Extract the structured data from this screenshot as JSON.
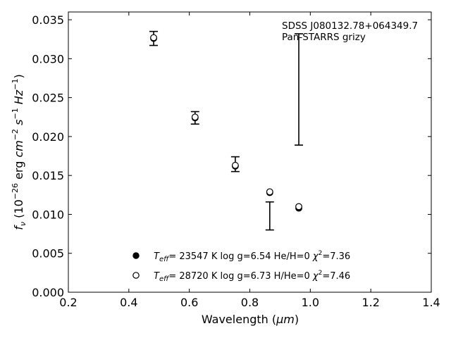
{
  "chart_data": {
    "type": "scatter",
    "xlabel_main": "Wavelength (",
    "xlabel_unit": "μm",
    "xlabel_close": ")",
    "ylabel": "f_ν (10^−26 erg cm^−2 s^−1 Hz^−1)",
    "xlim": [
      0.2,
      1.4
    ],
    "ylim": [
      0.0,
      0.036
    ],
    "xticks": [
      0.2,
      0.4,
      0.6,
      0.8,
      1.0,
      1.2,
      1.4
    ],
    "xtick_labels": [
      "0.2",
      "0.4",
      "0.6",
      "0.8",
      "1.0",
      "1.2",
      "1.4"
    ],
    "yticks": [
      0.0,
      0.005,
      0.01,
      0.015,
      0.02,
      0.025,
      0.03,
      0.035
    ],
    "ytick_labels": [
      "0.000",
      "0.005",
      "0.010",
      "0.015",
      "0.020",
      "0.025",
      "0.030",
      "0.035"
    ],
    "annotation_lines": [
      "SDSS J080132.78+064349.7",
      "Pan-STARRS grizy"
    ],
    "observed": [
      {
        "x": 0.482,
        "y": 0.0326,
        "yerr_low": 0.0317,
        "yerr_high": 0.0335
      },
      {
        "x": 0.619,
        "y": 0.0224,
        "yerr_low": 0.0216,
        "yerr_high": 0.0232
      },
      {
        "x": 0.752,
        "y": 0.0165,
        "yerr_low": 0.0155,
        "yerr_high": 0.0174
      },
      {
        "x": 0.866,
        "y": 0.0098,
        "yerr_low": 0.008,
        "yerr_high": 0.0116
      },
      {
        "x": 0.962,
        "y": 0.026,
        "yerr_low": 0.0189,
        "yerr_high": 0.0332
      }
    ],
    "series": [
      {
        "marker": "filled-circle",
        "label_teff": "= 23547 K  log g=6.54  He/H=0  ",
        "label_chi": "=7.36",
        "x": [
          0.482,
          0.619,
          0.752,
          0.866,
          0.962
        ],
        "y": [
          0.0326,
          0.0224,
          0.0162,
          0.0128,
          0.0108
        ]
      },
      {
        "marker": "open-circle",
        "label_teff": "= 28720 K  log g=6.73  H/He=0  ",
        "label_chi": "=7.46",
        "x": [
          0.482,
          0.619,
          0.752,
          0.866,
          0.962
        ],
        "y": [
          0.0327,
          0.0225,
          0.0163,
          0.0129,
          0.011
        ]
      }
    ],
    "legend_position": "lower-center"
  }
}
